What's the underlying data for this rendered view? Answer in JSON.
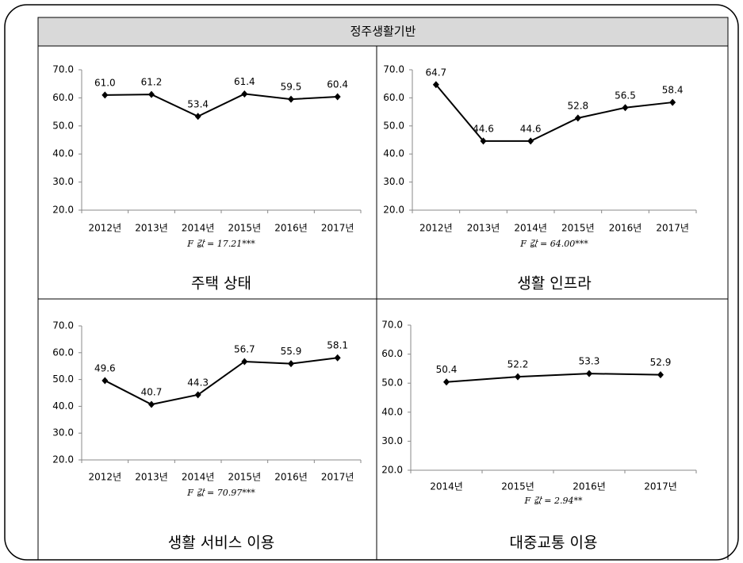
{
  "header": "정주생활기반",
  "chart_data": [
    {
      "type": "line",
      "title": "주택 상태",
      "annotation": "F 값 = 17.21***",
      "color": "#000000",
      "categories": [
        "2012년",
        "2013년",
        "2014년",
        "2015년",
        "2016년",
        "2017년"
      ],
      "values": [
        61.0,
        61.2,
        53.4,
        61.4,
        59.5,
        60.4
      ],
      "value_labels": [
        "61.0",
        "61.2",
        "53.4",
        "61.4",
        "59.5",
        "60.4"
      ],
      "ylim": [
        20,
        70
      ],
      "yticks": [
        {
          "value": 20,
          "label": "20.0"
        },
        {
          "value": 30,
          "label": "30.0"
        },
        {
          "value": 40,
          "label": "40.0"
        },
        {
          "value": 50,
          "label": "50.0"
        },
        {
          "value": 60,
          "label": "60.0"
        },
        {
          "value": 70,
          "label": "70.0"
        }
      ]
    },
    {
      "type": "line",
      "title": "생활 인프라",
      "annotation": "F 값 = 64.00***",
      "color": "#000000",
      "categories": [
        "2012년",
        "2013년",
        "2014년",
        "2015년",
        "2016년",
        "2017년"
      ],
      "values": [
        64.7,
        44.6,
        44.6,
        52.8,
        56.5,
        58.4
      ],
      "value_labels": [
        "64.7",
        "44.6",
        "44.6",
        "52.8",
        "56.5",
        "58.4"
      ],
      "ylim": [
        20,
        70
      ],
      "yticks": [
        {
          "value": 20,
          "label": "20.0"
        },
        {
          "value": 30,
          "label": "30.0"
        },
        {
          "value": 40,
          "label": "40.0"
        },
        {
          "value": 50,
          "label": "50.0"
        },
        {
          "value": 60,
          "label": "60.0"
        },
        {
          "value": 70,
          "label": "70.0"
        }
      ]
    },
    {
      "type": "line",
      "title": "생활 서비스 이용",
      "annotation": "F 값 = 70.97***",
      "color": "#000000",
      "categories": [
        "2012년",
        "2013년",
        "2014년",
        "2015년",
        "2016년",
        "2017년"
      ],
      "values": [
        49.6,
        40.7,
        44.3,
        56.7,
        55.9,
        58.1
      ],
      "value_labels": [
        "49.6",
        "40.7",
        "44.3",
        "56.7",
        "55.9",
        "58.1"
      ],
      "ylim": [
        20,
        70
      ],
      "yticks": [
        {
          "value": 20,
          "label": "20.0"
        },
        {
          "value": 30,
          "label": "30.0"
        },
        {
          "value": 40,
          "label": "40.0"
        },
        {
          "value": 50,
          "label": "50.0"
        },
        {
          "value": 60,
          "label": "60.0"
        },
        {
          "value": 70,
          "label": "70.0"
        }
      ]
    },
    {
      "type": "line",
      "title": "대중교통 이용",
      "annotation": "F 값 = 2.94**",
      "color": "#000000",
      "categories": [
        "2014년",
        "2015년",
        "2016년",
        "2017년"
      ],
      "values": [
        50.4,
        52.2,
        53.3,
        52.9
      ],
      "value_labels": [
        "50.4",
        "52.2",
        "53.3",
        "52.9"
      ],
      "ylim": [
        20,
        70
      ],
      "yticks": [
        {
          "value": 20,
          "label": "20.0"
        },
        {
          "value": 30,
          "label": "30.0"
        },
        {
          "value": 40,
          "label": "40.0"
        },
        {
          "value": 50,
          "label": "50.0"
        },
        {
          "value": 60,
          "label": "60.0"
        },
        {
          "value": 70,
          "label": "70.0"
        }
      ]
    }
  ]
}
